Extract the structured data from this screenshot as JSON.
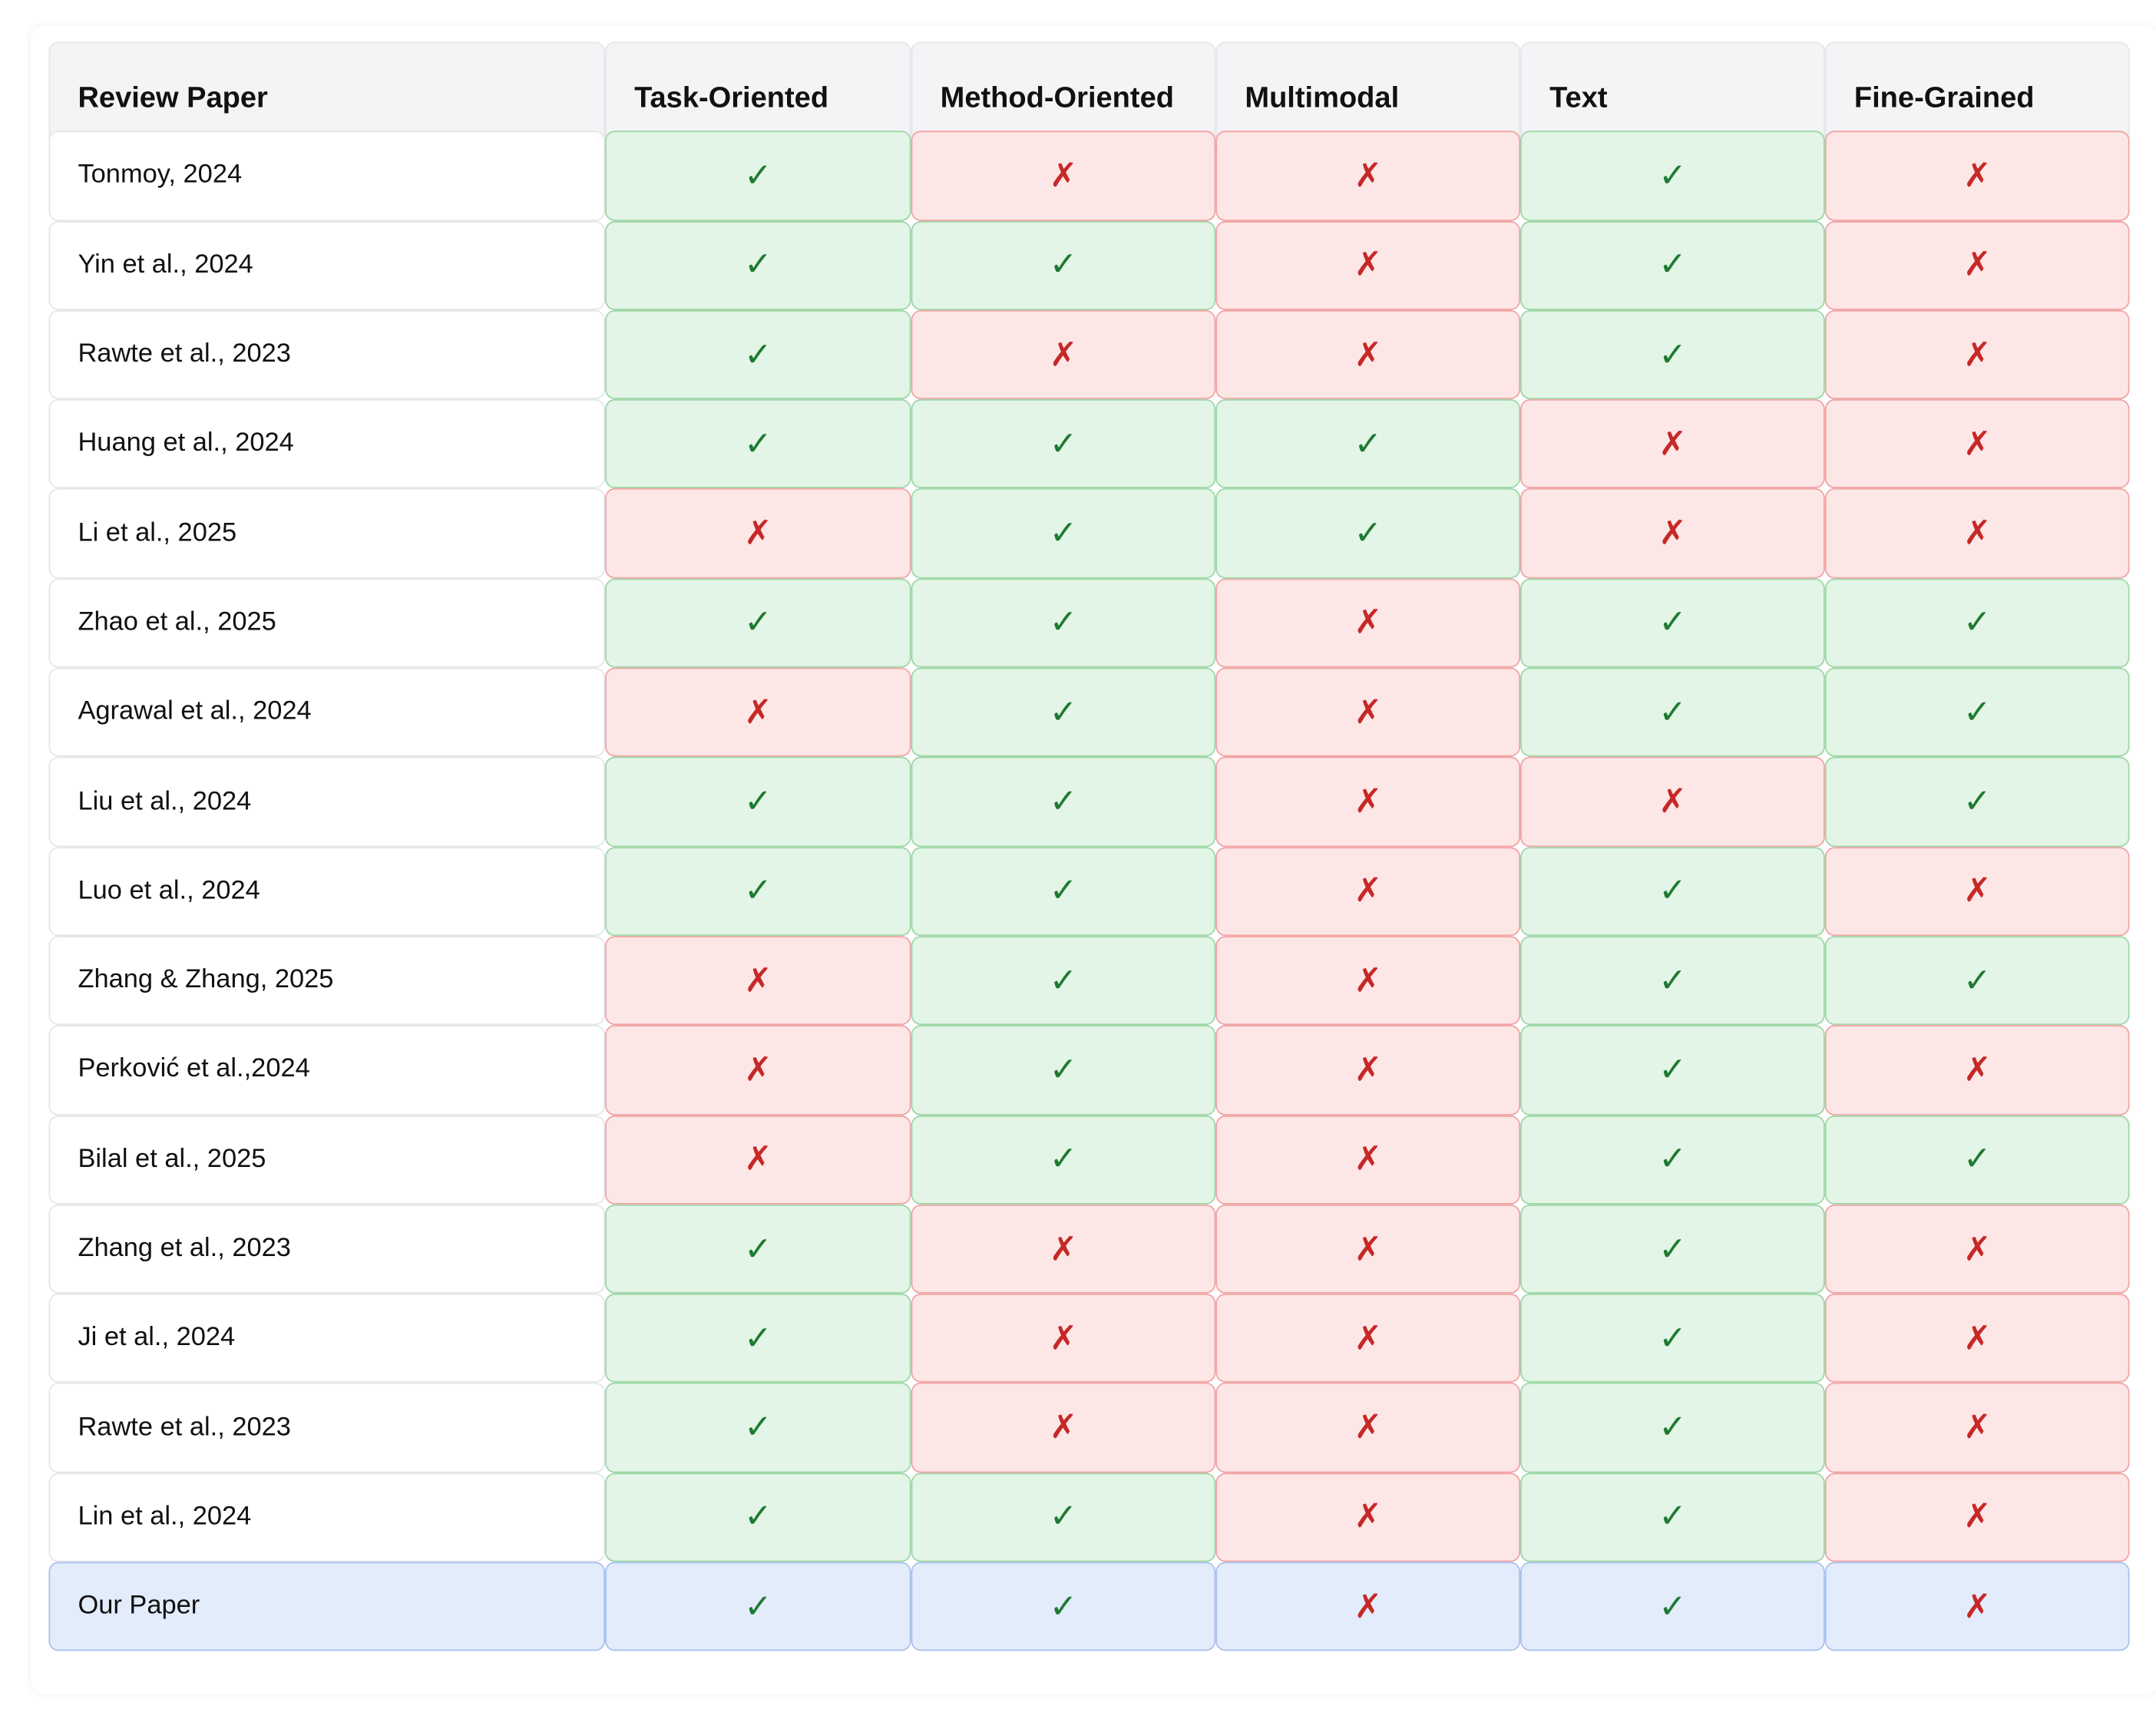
{
  "table": {
    "header": [
      "Review Paper",
      "Task-Oriented",
      "Method-Oriented",
      "Multimodal",
      "Text",
      "Fine-Grained"
    ],
    "rows": [
      {
        "paper": "Tonmoy, 2024",
        "cells": [
          "✓",
          "✗",
          "✗",
          "✓",
          "✗"
        ]
      },
      {
        "paper": "Yin et al., 2024",
        "cells": [
          "✓",
          "✓",
          "✗",
          "✓",
          "✗"
        ]
      },
      {
        "paper": "Rawte et al., 2023",
        "cells": [
          "✓",
          "✗",
          "✗",
          "✓",
          "✗"
        ]
      },
      {
        "paper": "Huang et al., 2024",
        "cells": [
          "✓",
          "✓",
          "✓",
          "✗",
          "✗"
        ]
      },
      {
        "paper": "Li et al., 2025",
        "cells": [
          "✗",
          "✓",
          "✓",
          "✗",
          "✗"
        ]
      },
      {
        "paper": "Zhao et al., 2025",
        "cells": [
          "✓",
          "✓",
          "✗",
          "✓",
          "✓"
        ]
      },
      {
        "paper": "Agrawal et al., 2024",
        "cells": [
          "✗",
          "✓",
          "✗",
          "✓",
          "✓"
        ]
      },
      {
        "paper": "Liu et al., 2024",
        "cells": [
          "✓",
          "✓",
          "✗",
          "✗",
          "✓"
        ]
      },
      {
        "paper": "Luo et al., 2024",
        "cells": [
          "✓",
          "✓",
          "✗",
          "✓",
          "✗"
        ]
      },
      {
        "paper": "Zhang & Zhang, 2025",
        "cells": [
          "✗",
          "✓",
          "✗",
          "✓",
          "✓"
        ]
      },
      {
        "paper": "Perković et al.,2024",
        "cells": [
          "✗",
          "✓",
          "✗",
          "✓",
          "✗"
        ]
      },
      {
        "paper": "Bilal et al., 2025",
        "cells": [
          "✗",
          "✓",
          "✗",
          "✓",
          "✓"
        ]
      },
      {
        "paper": "Zhang et al., 2023",
        "cells": [
          "✓",
          "✗",
          "✗",
          "✓",
          "✗"
        ]
      },
      {
        "paper": "Ji et al., 2024",
        "cells": [
          "✓",
          "✗",
          "✗",
          "✓",
          "✗"
        ]
      },
      {
        "paper": "Rawte et al., 2023",
        "cells": [
          "✓",
          "✗",
          "✗",
          "✓",
          "✗"
        ]
      },
      {
        "paper": "Lin et al., 2024",
        "cells": [
          "✓",
          "✓",
          "✗",
          "✓",
          "✗"
        ]
      },
      {
        "paper": "Our Paper",
        "cells": [
          "✓",
          "✓",
          "✗",
          "✓",
          "✗"
        ],
        "highlighted": true
      }
    ]
  }
}
